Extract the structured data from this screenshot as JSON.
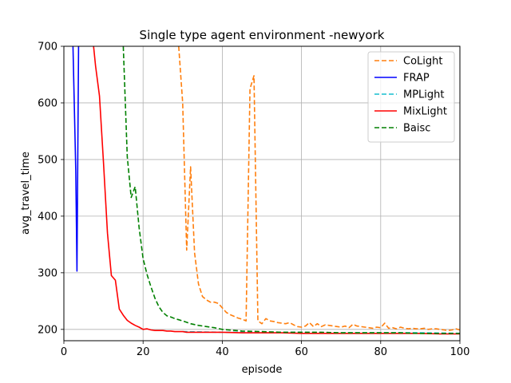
{
  "chart_data": {
    "type": "line",
    "title": "Single type agent environment -newyork",
    "xlabel": "episode",
    "ylabel": "avg_travel_time",
    "xlim": [
      0,
      100
    ],
    "ylim": [
      180,
      700
    ],
    "xticks": [
      "0",
      "20",
      "40",
      "60",
      "80",
      "100"
    ],
    "yticks": [
      "200",
      "300",
      "400",
      "500",
      "600",
      "700"
    ],
    "grid": true,
    "legend_position": "top-right",
    "series": [
      {
        "name": "CoLight",
        "color": "#ff7f0e",
        "dash": "dashed",
        "x": [
          29,
          30,
          31,
          32,
          33,
          34,
          35,
          36,
          37,
          38,
          39,
          40,
          41,
          42,
          43,
          44,
          45,
          46,
          47,
          48,
          49,
          50,
          51,
          52,
          53,
          54,
          55,
          56,
          57,
          58,
          59,
          60,
          61,
          62,
          63,
          64,
          65,
          66,
          67,
          68,
          69,
          70,
          71,
          72,
          73,
          74,
          75,
          76,
          77,
          78,
          79,
          80,
          81,
          82,
          83,
          84,
          85,
          86,
          87,
          88,
          89,
          90,
          91,
          92,
          93,
          94,
          95,
          96,
          97,
          98,
          99,
          100
        ],
        "y": [
          700,
          600,
          340,
          487,
          335,
          280,
          258,
          252,
          248,
          248,
          246,
          238,
          230,
          226,
          223,
          220,
          218,
          215,
          625,
          648,
          215,
          210,
          219,
          215,
          214,
          212,
          211,
          210,
          212,
          208,
          205,
          204,
          206,
          212,
          205,
          210,
          205,
          208,
          207,
          206,
          205,
          204,
          206,
          203,
          209,
          206,
          205,
          204,
          203,
          202,
          204,
          203,
          211,
          202,
          203,
          201,
          204,
          202,
          201,
          202,
          201,
          201,
          202,
          200,
          201,
          201,
          200,
          199,
          198,
          199,
          201,
          199
        ]
      },
      {
        "name": "FRAP",
        "color": "#0000ff",
        "dash": "solid",
        "x": [
          2.3,
          3.0,
          3.3,
          3.7
        ],
        "y": [
          700,
          480,
          303,
          700
        ]
      },
      {
        "name": "MPLight",
        "color": "#17becf",
        "dash": "dashed",
        "x": [
          30,
          40,
          50,
          60,
          70,
          80,
          90,
          100
        ],
        "y": [
          196,
          195,
          195,
          195,
          194,
          194,
          194,
          193
        ]
      },
      {
        "name": "MixLight",
        "color": "#ff0000",
        "dash": "solid",
        "x": [
          7.5,
          8,
          9,
          10,
          11,
          12,
          13,
          14,
          15,
          16,
          17,
          18,
          19,
          20,
          21,
          22,
          23,
          24,
          25,
          26,
          27,
          28,
          29,
          30,
          31,
          32,
          33,
          34,
          35,
          36,
          37,
          38,
          39,
          40,
          45,
          50,
          55,
          60,
          65,
          70,
          75,
          80,
          85,
          90,
          95,
          100
        ],
        "y": [
          700,
          665,
          612,
          495,
          370,
          295,
          287,
          236,
          225,
          216,
          211,
          207,
          204,
          200,
          201,
          199,
          198,
          198,
          198,
          197,
          197,
          196,
          196,
          196,
          195,
          195,
          195,
          195,
          195,
          195,
          195,
          195,
          195,
          195,
          194,
          194,
          194,
          193,
          193,
          193,
          193,
          193,
          193,
          193,
          192,
          192
        ]
      },
      {
        "name": "Baisc",
        "color": "#008000",
        "dash": "dashed",
        "x": [
          15,
          16,
          17,
          18,
          19,
          20,
          21,
          22,
          23,
          24,
          25,
          26,
          27,
          28,
          29,
          30,
          32,
          34,
          36,
          38,
          40,
          45,
          50,
          55,
          60,
          65,
          70,
          75,
          80,
          85,
          90,
          95,
          100
        ],
        "y": [
          700,
          505,
          433,
          452,
          380,
          325,
          297,
          275,
          255,
          240,
          230,
          224,
          222,
          219,
          217,
          215,
          210,
          207,
          205,
          203,
          200,
          197,
          196,
          195,
          195,
          195,
          194,
          194,
          194,
          194,
          193,
          193,
          193
        ]
      }
    ]
  }
}
